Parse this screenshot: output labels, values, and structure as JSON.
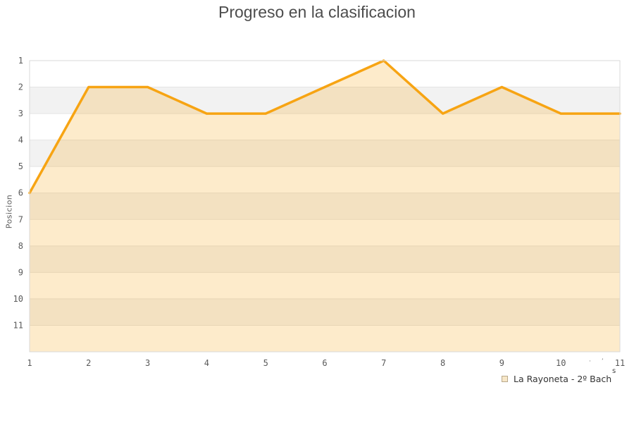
{
  "header": {
    "title": "Progreso en la clasificacion"
  },
  "axes": {
    "y_title": "Posicion"
  },
  "legend": {
    "label": "La Rayoneta - 2º Bach"
  },
  "artifacts": {
    "superscript": "s",
    "marks": "·ʼ"
  },
  "colors": {
    "line": "#f7a413",
    "area_fill": "rgba(247,164,19,0.22)",
    "band_gray": "#f2f2f2",
    "band_white": "#ffffff",
    "grid": "#e4e4e4",
    "plot_border": "#d9d9d9",
    "title_text": "#4d4d4d",
    "tick_text": "#595959",
    "legend_text": "#333333",
    "legend_swatch_border": "#b9a98c",
    "legend_swatch_fill": "#f7e7c8"
  },
  "chart_data": {
    "type": "area",
    "title": "Progreso en la clasificacion",
    "xlabel": "",
    "ylabel": "Posicion",
    "x": [
      1,
      2,
      3,
      4,
      5,
      6,
      7,
      8,
      9,
      10,
      11
    ],
    "x_tick_labels": [
      "1",
      "2",
      "3",
      "4",
      "5",
      "6",
      "7",
      "8",
      "9",
      "10",
      "11"
    ],
    "y_ticks": [
      1,
      2,
      3,
      4,
      5,
      6,
      7,
      8,
      9,
      10,
      11
    ],
    "series": [
      {
        "name": "La Rayoneta - 2º Bach",
        "values": [
          6,
          2,
          2,
          3,
          3,
          2,
          1,
          3,
          2,
          3,
          3
        ]
      }
    ],
    "ylim": [
      1,
      12
    ],
    "y_inverted": true,
    "grid": "horizontal",
    "alternating_row_bands": true,
    "legend_position": "bottom-right",
    "vertical_gridlines": false
  }
}
